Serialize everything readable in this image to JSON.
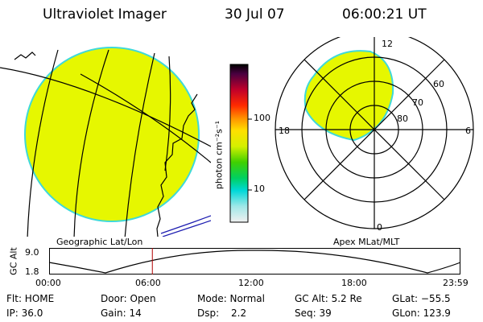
{
  "header": {
    "instrument": "Ultraviolet Imager",
    "date": "30 Jul 07",
    "time": "06:00:21 UT"
  },
  "colorbar": {
    "label": "photon cm⁻²s⁻¹",
    "ticks": [
      "100",
      "10"
    ]
  },
  "geo_panel": {
    "caption": "Geographic Lat/Lon"
  },
  "polar_panel": {
    "caption": "Apex MLat/MLT",
    "mlt_labels": {
      "top": "12",
      "left": "18",
      "right": "6",
      "bottom": "0"
    },
    "mlat_labels": [
      "60",
      "70",
      "80"
    ]
  },
  "altitude_plot": {
    "ylabel": "GC Alt",
    "ymax": "9.0",
    "ymin": "1.8",
    "time_ticks": [
      "00:00",
      "06:00",
      "12:00",
      "18:00",
      "23:59"
    ],
    "current_time_fraction": 0.25
  },
  "status": {
    "flt": "Flt: HOME",
    "ip": "IP: 36.0",
    "door": "Door: Open",
    "gain": "Gain: 14",
    "mode": "Mode: Normal",
    "dsp_label": "Dsp:",
    "dsp_value": "2.2",
    "gc_alt": "GC Alt: 5.2 Re",
    "seq": "Seq: 39",
    "glat": "GLat: −55.5",
    "glon": "GLon: 123.9"
  },
  "colors": {
    "fill": "#e6f700",
    "edge": "#3fd9d9",
    "line": "#000000",
    "coast": "#000000",
    "marker": "#b00000"
  }
}
